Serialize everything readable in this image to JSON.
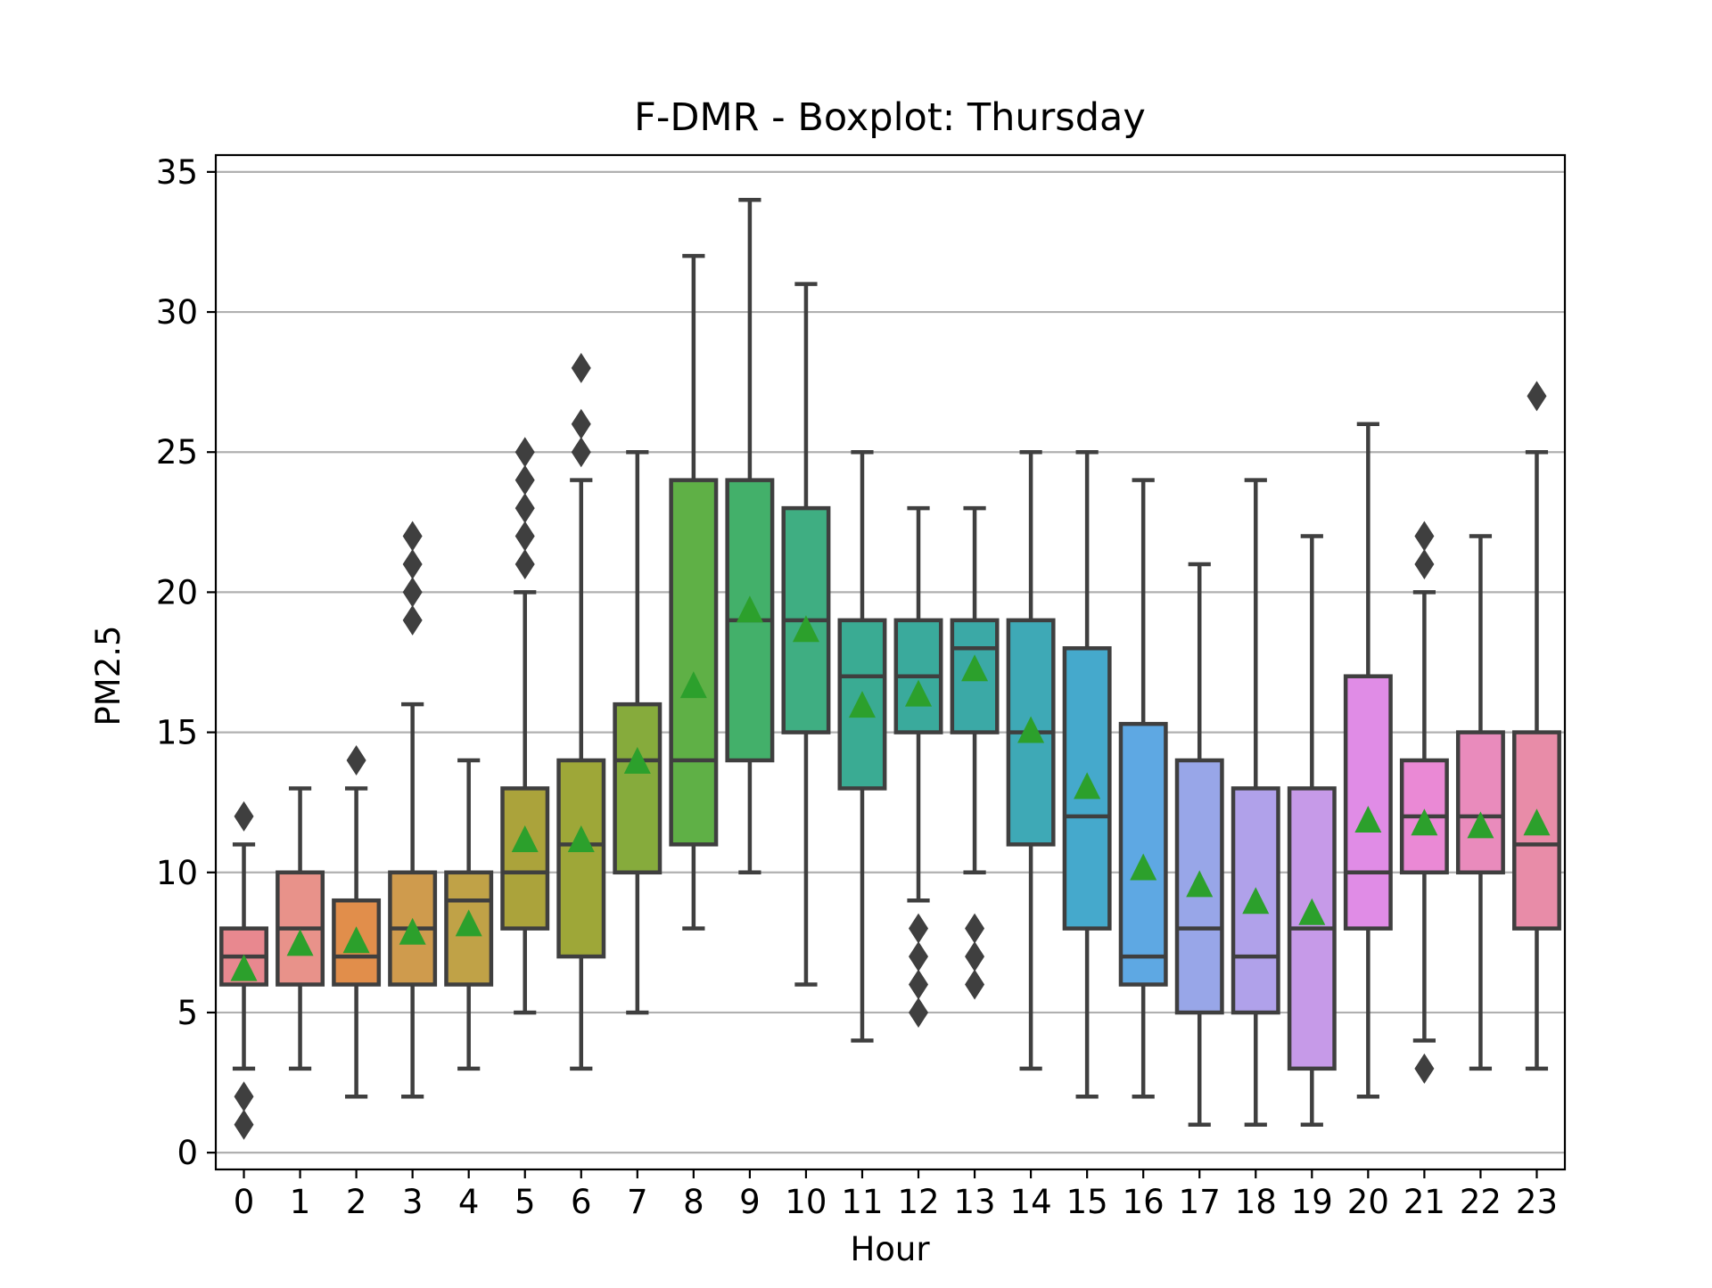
{
  "chart_data": {
    "type": "box",
    "title": "F-DMR - Boxplot: Thursday",
    "xlabel": "Hour",
    "ylabel": "PM2.5",
    "ylim": [
      -0.6,
      35.6
    ],
    "yticks": [
      0,
      5,
      10,
      15,
      20,
      25,
      30,
      35
    ],
    "grid": "horizontal",
    "categories": [
      "0",
      "1",
      "2",
      "3",
      "4",
      "5",
      "6",
      "7",
      "8",
      "9",
      "10",
      "11",
      "12",
      "13",
      "14",
      "15",
      "16",
      "17",
      "18",
      "19",
      "20",
      "21",
      "22",
      "23"
    ],
    "boxes": [
      {
        "category": "0",
        "color": "#e8888f",
        "whisker_low": 3,
        "q1": 6,
        "median": 7,
        "q3": 8,
        "whisker_high": 11,
        "mean": 6.6,
        "outliers": [
          12,
          2,
          1
        ]
      },
      {
        "category": "1",
        "color": "#e8928a",
        "whisker_low": 3,
        "q1": 6,
        "median": 8,
        "q3": 10,
        "whisker_high": 13,
        "mean": 7.5,
        "outliers": []
      },
      {
        "category": "2",
        "color": "#e18e4b",
        "whisker_low": 2,
        "q1": 6,
        "median": 7,
        "q3": 9,
        "whisker_high": 13,
        "mean": 7.6,
        "outliers": [
          14
        ]
      },
      {
        "category": "3",
        "color": "#cf9b4d",
        "whisker_low": 2,
        "q1": 6,
        "median": 8,
        "q3": 10,
        "whisker_high": 16,
        "mean": 7.9,
        "outliers": [
          22,
          21,
          20,
          19
        ]
      },
      {
        "category": "4",
        "color": "#c0a247",
        "whisker_low": 3,
        "q1": 6,
        "median": 9,
        "q3": 10,
        "whisker_high": 14,
        "mean": 8.2,
        "outliers": []
      },
      {
        "category": "5",
        "color": "#aba33b",
        "whisker_low": 5,
        "q1": 8,
        "median": 10,
        "q3": 13,
        "whisker_high": 20,
        "mean": 11.2,
        "outliers": [
          25,
          24,
          23,
          22,
          21
        ]
      },
      {
        "category": "6",
        "color": "#9ea738",
        "whisker_low": 3,
        "q1": 7,
        "median": 11,
        "q3": 14,
        "whisker_high": 24,
        "mean": 11.2,
        "outliers": [
          28,
          26,
          25
        ]
      },
      {
        "category": "7",
        "color": "#86ab3c",
        "whisker_low": 5,
        "q1": 10,
        "median": 14,
        "q3": 16,
        "whisker_high": 25,
        "mean": 14.0,
        "outliers": []
      },
      {
        "category": "8",
        "color": "#5fb046",
        "whisker_low": 8,
        "q1": 11,
        "median": 14,
        "q3": 24,
        "whisker_high": 32,
        "mean": 16.7,
        "outliers": []
      },
      {
        "category": "9",
        "color": "#43b06a",
        "whisker_low": 10,
        "q1": 14,
        "median": 19,
        "q3": 24,
        "whisker_high": 34,
        "mean": 19.4,
        "outliers": []
      },
      {
        "category": "10",
        "color": "#3fae82",
        "whisker_low": 6,
        "q1": 15,
        "median": 19,
        "q3": 23,
        "whisker_high": 31,
        "mean": 18.7,
        "outliers": []
      },
      {
        "category": "11",
        "color": "#3aab93",
        "whisker_low": 4,
        "q1": 13,
        "median": 17,
        "q3": 19,
        "whisker_high": 25,
        "mean": 16.0,
        "outliers": []
      },
      {
        "category": "12",
        "color": "#3aaa9c",
        "whisker_low": 9,
        "q1": 15,
        "median": 17,
        "q3": 19,
        "whisker_high": 23,
        "mean": 16.4,
        "outliers": [
          8,
          7,
          6,
          5
        ]
      },
      {
        "category": "13",
        "color": "#3ba9a6",
        "whisker_low": 10,
        "q1": 15,
        "median": 18,
        "q3": 19,
        "whisker_high": 23,
        "mean": 17.3,
        "outliers": [
          8,
          7,
          6
        ]
      },
      {
        "category": "14",
        "color": "#3ea9b6",
        "whisker_low": 3,
        "q1": 11,
        "median": 15,
        "q3": 19,
        "whisker_high": 25,
        "mean": 15.1,
        "outliers": []
      },
      {
        "category": "15",
        "color": "#45a9cc",
        "whisker_low": 2,
        "q1": 8,
        "median": 12,
        "q3": 18,
        "whisker_high": 25,
        "mean": 13.1,
        "outliers": []
      },
      {
        "category": "16",
        "color": "#5ea8e3",
        "whisker_low": 2,
        "q1": 6,
        "median": 7,
        "q3": 15.3,
        "whisker_high": 24,
        "mean": 10.2,
        "outliers": []
      },
      {
        "category": "17",
        "color": "#98a6e8",
        "whisker_low": 1,
        "q1": 5,
        "median": 8,
        "q3": 14,
        "whisker_high": 21,
        "mean": 9.6,
        "outliers": []
      },
      {
        "category": "18",
        "color": "#b0a1ea",
        "whisker_low": 1,
        "q1": 5,
        "median": 7,
        "q3": 13,
        "whisker_high": 24,
        "mean": 9.0,
        "outliers": []
      },
      {
        "category": "19",
        "color": "#c69ae8",
        "whisker_low": 1,
        "q1": 3,
        "median": 8,
        "q3": 13,
        "whisker_high": 22,
        "mean": 8.6,
        "outliers": []
      },
      {
        "category": "20",
        "color": "#e08ce6",
        "whisker_low": 2,
        "q1": 8,
        "median": 10,
        "q3": 17,
        "whisker_high": 26,
        "mean": 11.9,
        "outliers": []
      },
      {
        "category": "21",
        "color": "#ea89d5",
        "whisker_low": 4,
        "q1": 10,
        "median": 12,
        "q3": 14,
        "whisker_high": 20,
        "mean": 11.8,
        "outliers": [
          22,
          21,
          3
        ]
      },
      {
        "category": "22",
        "color": "#e98bbc",
        "whisker_low": 3,
        "q1": 10,
        "median": 12,
        "q3": 15,
        "whisker_high": 22,
        "mean": 11.7,
        "outliers": []
      },
      {
        "category": "23",
        "color": "#e88ca8",
        "whisker_low": 3,
        "q1": 8,
        "median": 11,
        "q3": 15,
        "whisker_high": 25,
        "mean": 11.8,
        "outliers": [
          27
        ]
      }
    ],
    "colors": {
      "line": "#3f3f3f",
      "mean_marker": "#2ca02c",
      "grid": "#b0b0b0",
      "axes": "#000000"
    }
  }
}
